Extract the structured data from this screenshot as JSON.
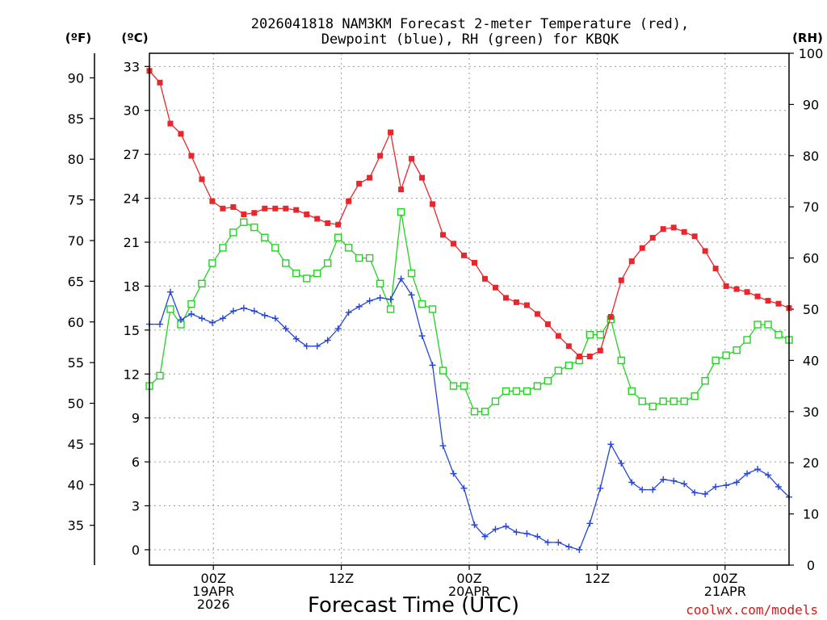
{
  "chart_data": {
    "type": "line",
    "title": [
      "2026041818 NAM3KM Forecast 2-meter Temperature (red),",
      "Dewpoint (blue), RH (green) for KBQK"
    ],
    "xlabel": "Forecast Time (UTC)",
    "credit": "coolwx.com/models",
    "units": {
      "fahrenheit": "(ºF)",
      "celsius": "(ºC)",
      "rh": "(RH)"
    },
    "x_start_hour": 18,
    "x_end_hour": 78,
    "x_ticks": [
      {
        "hour": 24,
        "lines": [
          "00Z",
          "19APR",
          "2026"
        ]
      },
      {
        "hour": 36,
        "lines": [
          "12Z"
        ]
      },
      {
        "hour": 48,
        "lines": [
          "00Z",
          "20APR"
        ]
      },
      {
        "hour": 60,
        "lines": [
          "12Z"
        ]
      },
      {
        "hour": 72,
        "lines": [
          "00Z",
          "21APR"
        ]
      }
    ],
    "celsius_ticks": [
      "0",
      "3",
      "6",
      "9",
      "12",
      "15",
      "18",
      "21",
      "24",
      "27",
      "30",
      "33"
    ],
    "fahrenheit_ticks": [
      "35",
      "40",
      "45",
      "50",
      "55",
      "60",
      "65",
      "70",
      "75",
      "80",
      "85",
      "90"
    ],
    "rh_ticks": [
      "0",
      "10",
      "20",
      "30",
      "40",
      "50",
      "60",
      "70",
      "80",
      "90",
      "100"
    ],
    "ylim_celsius": [
      -1.05,
      33.9
    ],
    "ylim_rh": [
      0,
      100
    ],
    "series": [
      {
        "name": "Temperature",
        "unit": "C",
        "color": "#e8262b",
        "marker": "filled-square",
        "values": [
          32.7,
          31.9,
          29.1,
          28.4,
          26.9,
          25.3,
          23.8,
          23.3,
          23.4,
          22.9,
          23.0,
          23.3,
          23.3,
          23.3,
          23.2,
          22.9,
          22.6,
          22.3,
          22.2,
          23.8,
          25.0,
          25.4,
          26.9,
          28.5,
          24.6,
          26.7,
          25.4,
          23.6,
          21.5,
          20.9,
          20.1,
          19.6,
          18.5,
          17.9,
          17.2,
          16.9,
          16.7,
          16.1,
          15.4,
          14.6,
          13.9,
          13.2,
          13.2,
          13.6,
          15.9,
          18.4,
          19.7,
          20.6,
          21.3,
          21.9,
          22.0,
          21.7,
          21.4,
          20.4,
          19.2,
          18.0,
          17.8,
          17.6,
          17.3,
          17.0,
          16.8,
          16.5
        ]
      },
      {
        "name": "Dewpoint",
        "unit": "C",
        "color": "#2545d6",
        "marker": "plus",
        "values": [
          15.4,
          15.4,
          17.6,
          15.7,
          16.1,
          15.8,
          15.5,
          15.8,
          16.3,
          16.5,
          16.3,
          16.0,
          15.8,
          15.1,
          14.4,
          13.9,
          13.9,
          14.3,
          15.1,
          16.2,
          16.6,
          17.0,
          17.2,
          17.1,
          18.5,
          17.4,
          14.6,
          12.6,
          7.1,
          5.2,
          4.2,
          1.7,
          0.9,
          1.4,
          1.6,
          1.2,
          1.1,
          0.9,
          0.5,
          0.5,
          0.2,
          0.0,
          1.8,
          4.2,
          7.2,
          5.9,
          4.6,
          4.1,
          4.1,
          4.8,
          4.7,
          4.5,
          3.9,
          3.8,
          4.3,
          4.4,
          4.6,
          5.2,
          5.5,
          5.1,
          4.3,
          3.6
        ]
      },
      {
        "name": "Relative Humidity",
        "unit": "RH",
        "color": "#22d322",
        "marker": "open-square",
        "values": [
          35,
          37,
          50,
          47,
          51,
          55,
          59,
          62,
          65,
          67,
          66,
          64,
          62,
          59,
          57,
          56,
          57,
          59,
          64,
          62,
          60,
          60,
          55,
          50,
          69,
          57,
          51,
          50,
          38,
          35,
          35,
          30,
          30,
          32,
          34,
          34,
          34,
          35,
          36,
          38,
          39,
          40,
          45,
          45,
          48,
          40,
          34,
          32,
          31,
          32,
          32,
          32,
          33,
          36,
          40,
          41,
          42,
          44,
          47,
          47,
          45,
          44
        ]
      }
    ]
  }
}
